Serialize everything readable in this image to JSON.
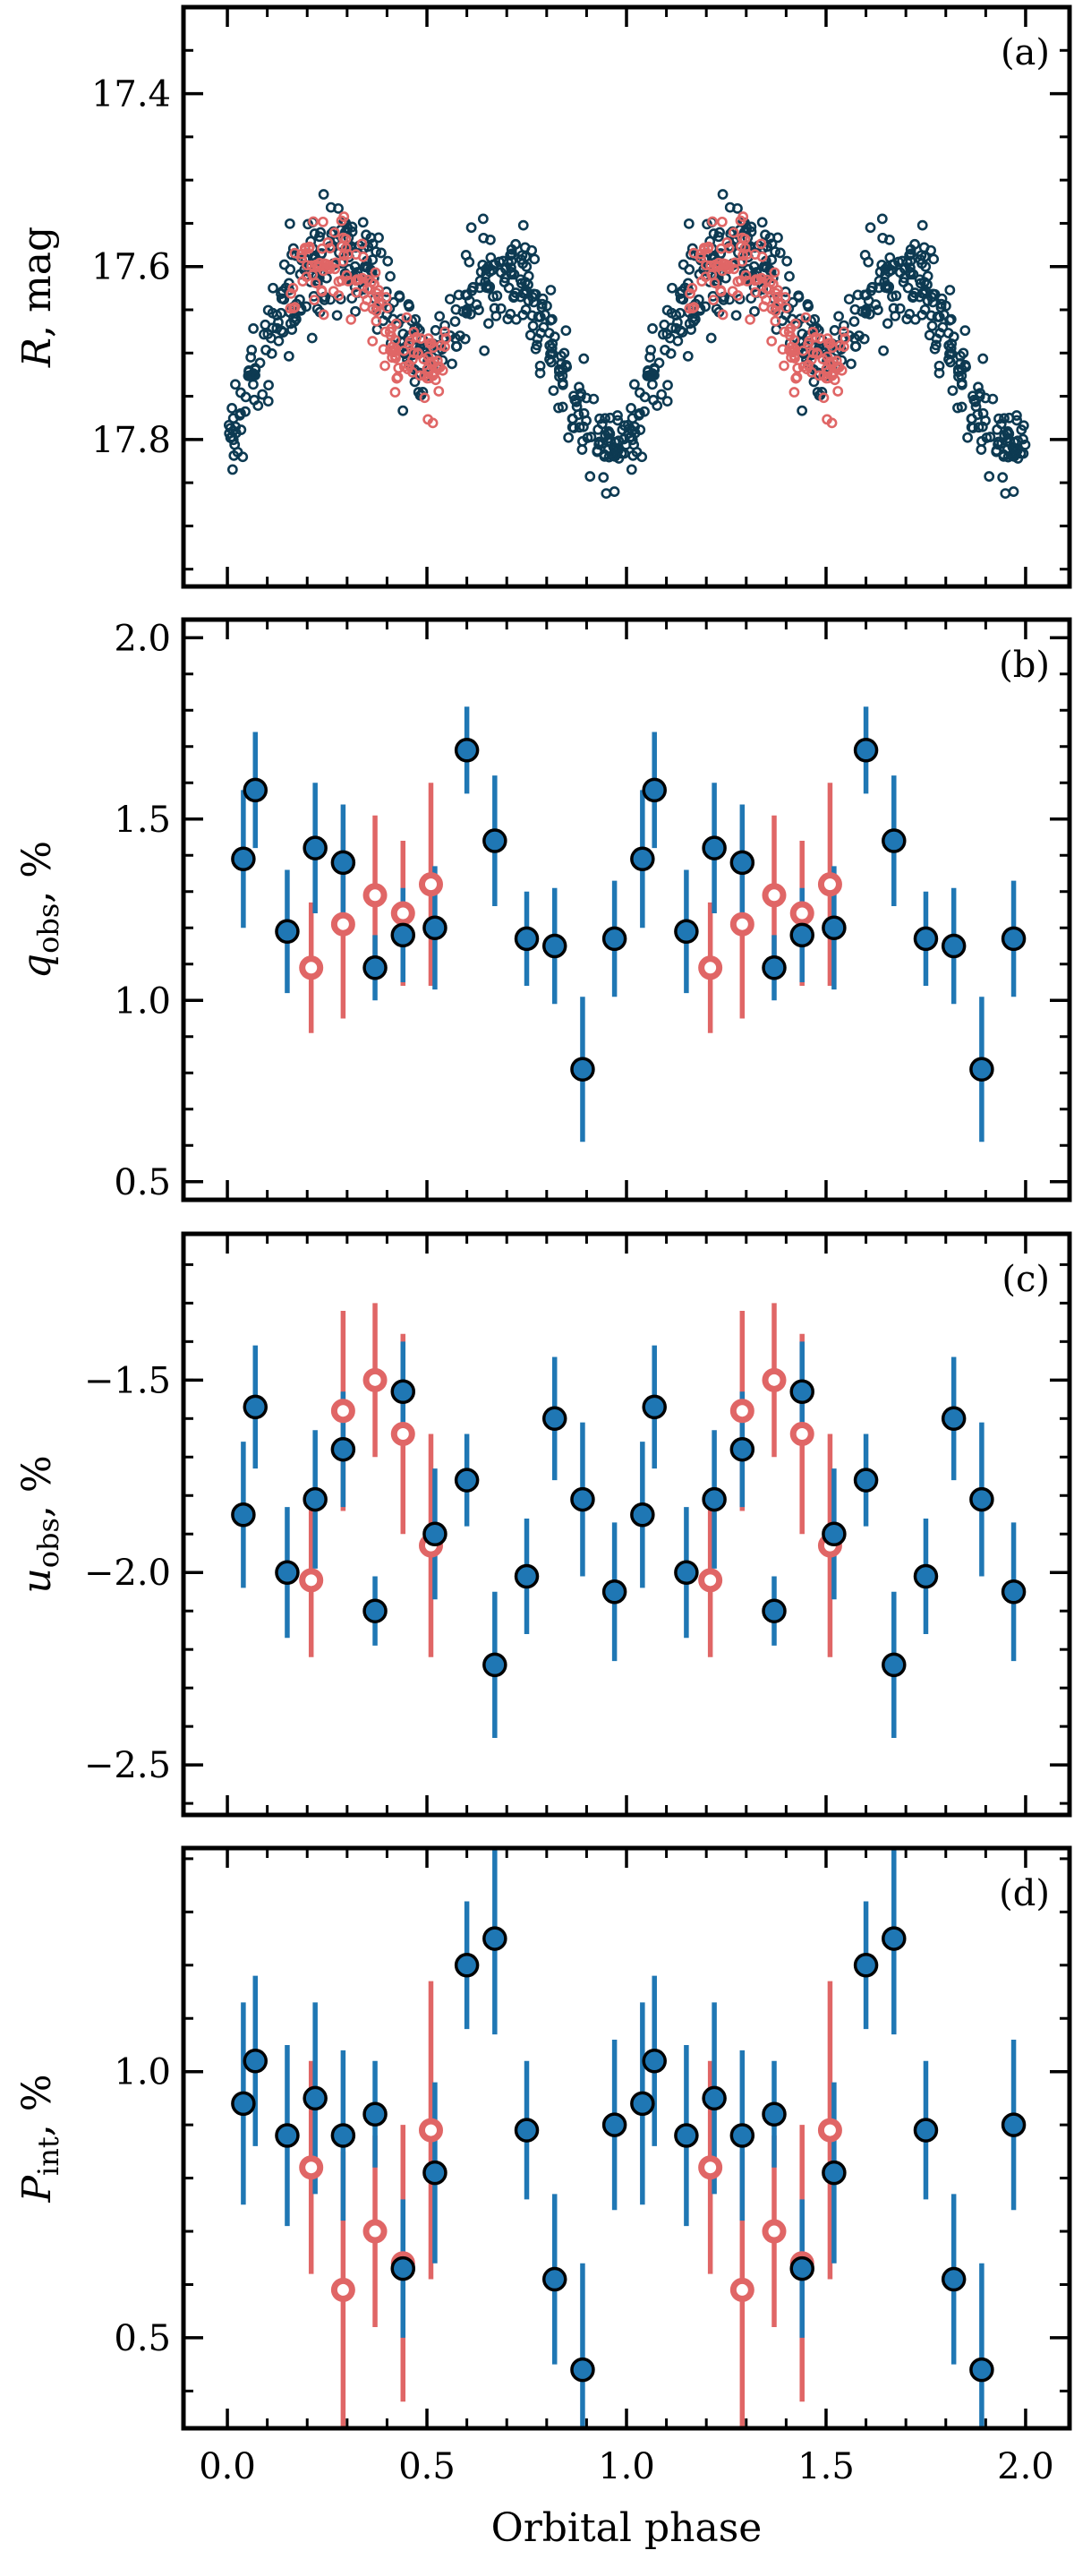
{
  "chart_data": [
    {
      "panel": "(a)",
      "type": "scatter",
      "ylabel_symbol": "R",
      "ylabel_rest": ", mag",
      "ylim": [
        17.3,
        17.97
      ],
      "y_inverted": true,
      "yticks": [
        17.4,
        17.6,
        17.8
      ],
      "ytick_labels": [
        "17.4",
        "17.6",
        "17.8"
      ],
      "colors": {
        "photometry_main": "#0d3a52",
        "photometry_second": "#e06060"
      },
      "series": [
        {
          "name": "photometry-main",
          "description": "dense light curve, many points",
          "phase_x": [
            0.0,
            0.05,
            0.1,
            0.15,
            0.2,
            0.25,
            0.3,
            0.35,
            0.4,
            0.45,
            0.5,
            0.55,
            0.6,
            0.65,
            0.7,
            0.75,
            0.8,
            0.85,
            0.9,
            0.95,
            1.0
          ],
          "mean_mag": [
            17.82,
            17.74,
            17.68,
            17.63,
            17.61,
            17.6,
            17.58,
            17.59,
            17.64,
            17.69,
            17.71,
            17.68,
            17.64,
            17.62,
            17.61,
            17.63,
            17.68,
            17.74,
            17.78,
            17.8,
            17.82
          ],
          "scatter": 0.045
        },
        {
          "name": "photometry-second",
          "phase_x": [
            0.15,
            0.2,
            0.25,
            0.3,
            0.35,
            0.4,
            0.45,
            0.5,
            0.55
          ],
          "mean_mag": [
            17.62,
            17.6,
            17.6,
            17.59,
            17.62,
            17.68,
            17.71,
            17.72,
            17.7
          ],
          "scatter": 0.04
        }
      ]
    },
    {
      "panel": "(b)",
      "type": "scatter",
      "ylabel_symbol": "q",
      "ylabel_sub": "obs",
      "ylabel_rest": ", %",
      "ylim": [
        0.45,
        2.05
      ],
      "yticks": [
        0.5,
        1.0,
        1.5,
        2.0
      ],
      "ytick_labels": [
        "0.5",
        "1.0",
        "1.5",
        "2.0"
      ],
      "series": [
        {
          "name": "main",
          "x": [
            0.04,
            0.07,
            0.15,
            0.22,
            0.29,
            0.37,
            0.44,
            0.52,
            0.6,
            0.67,
            0.75,
            0.82,
            0.89,
            0.97
          ],
          "y": [
            1.39,
            1.58,
            1.19,
            1.42,
            1.38,
            1.09,
            1.18,
            1.2,
            1.69,
            1.44,
            1.17,
            1.15,
            0.81,
            1.17
          ],
          "err": [
            0.19,
            0.16,
            0.17,
            0.18,
            0.16,
            0.09,
            0.13,
            0.17,
            0.12,
            0.18,
            0.13,
            0.16,
            0.2,
            0.16
          ]
        },
        {
          "name": "second",
          "x": [
            0.21,
            0.29,
            0.37,
            0.44,
            0.51
          ],
          "y": [
            1.09,
            1.21,
            1.29,
            1.24,
            1.32
          ],
          "err": [
            0.18,
            0.26,
            0.22,
            0.2,
            0.28
          ]
        }
      ]
    },
    {
      "panel": "(c)",
      "type": "scatter",
      "ylabel_symbol": "u",
      "ylabel_sub": "obs",
      "ylabel_rest": ", %",
      "ylim": [
        -2.63,
        -1.12
      ],
      "yticks": [
        -2.5,
        -2.0,
        -1.5
      ],
      "ytick_labels": [
        "−2.5",
        "−2.0",
        "−1.5"
      ],
      "series": [
        {
          "name": "main",
          "x": [
            0.04,
            0.07,
            0.15,
            0.22,
            0.29,
            0.37,
            0.44,
            0.52,
            0.6,
            0.67,
            0.75,
            0.82,
            0.89,
            0.97
          ],
          "y": [
            -1.85,
            -1.57,
            -2.0,
            -1.81,
            -1.68,
            -2.1,
            -1.53,
            -1.9,
            -1.76,
            -2.24,
            -2.01,
            -1.6,
            -1.81,
            -2.05
          ],
          "err": [
            0.19,
            0.16,
            0.17,
            0.18,
            0.15,
            0.09,
            0.13,
            0.17,
            0.12,
            0.19,
            0.15,
            0.16,
            0.2,
            0.18
          ]
        },
        {
          "name": "second",
          "x": [
            0.21,
            0.29,
            0.37,
            0.44,
            0.51
          ],
          "y": [
            -2.02,
            -1.58,
            -1.5,
            -1.64,
            -1.93
          ],
          "err": [
            0.2,
            0.26,
            0.2,
            0.26,
            0.29
          ]
        }
      ]
    },
    {
      "panel": "(d)",
      "type": "scatter",
      "ylabel_symbol": "P",
      "ylabel_sub": "int",
      "ylabel_rest": ", %",
      "ylim": [
        0.33,
        1.42
      ],
      "yticks": [
        0.5,
        1.0
      ],
      "ytick_labels": [
        "0.5",
        "1.0"
      ],
      "series": [
        {
          "name": "main",
          "x": [
            0.04,
            0.07,
            0.15,
            0.22,
            0.29,
            0.37,
            0.44,
            0.52,
            0.6,
            0.67,
            0.75,
            0.82,
            0.89,
            0.97
          ],
          "y": [
            0.94,
            1.02,
            0.88,
            0.95,
            0.88,
            0.92,
            0.63,
            0.81,
            1.2,
            1.25,
            0.89,
            0.61,
            0.44,
            0.9
          ],
          "err": [
            0.19,
            0.16,
            0.17,
            0.18,
            0.16,
            0.1,
            0.13,
            0.17,
            0.12,
            0.18,
            0.13,
            0.16,
            0.2,
            0.16
          ]
        },
        {
          "name": "second",
          "x": [
            0.21,
            0.29,
            0.37,
            0.44,
            0.51
          ],
          "y": [
            0.82,
            0.59,
            0.7,
            0.64,
            0.89
          ],
          "err": [
            0.2,
            0.26,
            0.18,
            0.26,
            0.28
          ]
        }
      ]
    }
  ],
  "xaxis": {
    "title": "Orbital phase",
    "xlim": [
      -0.11,
      2.11
    ],
    "ticks": [
      0.0,
      0.5,
      1.0,
      1.5,
      2.0
    ],
    "tick_labels": [
      "0.0",
      "0.5",
      "1.0",
      "1.5",
      "2.0"
    ],
    "phase_repeat": 1
  },
  "colors": {
    "blue": "#1f77b4",
    "red": "#e06666",
    "dark": "#0d3a52"
  }
}
